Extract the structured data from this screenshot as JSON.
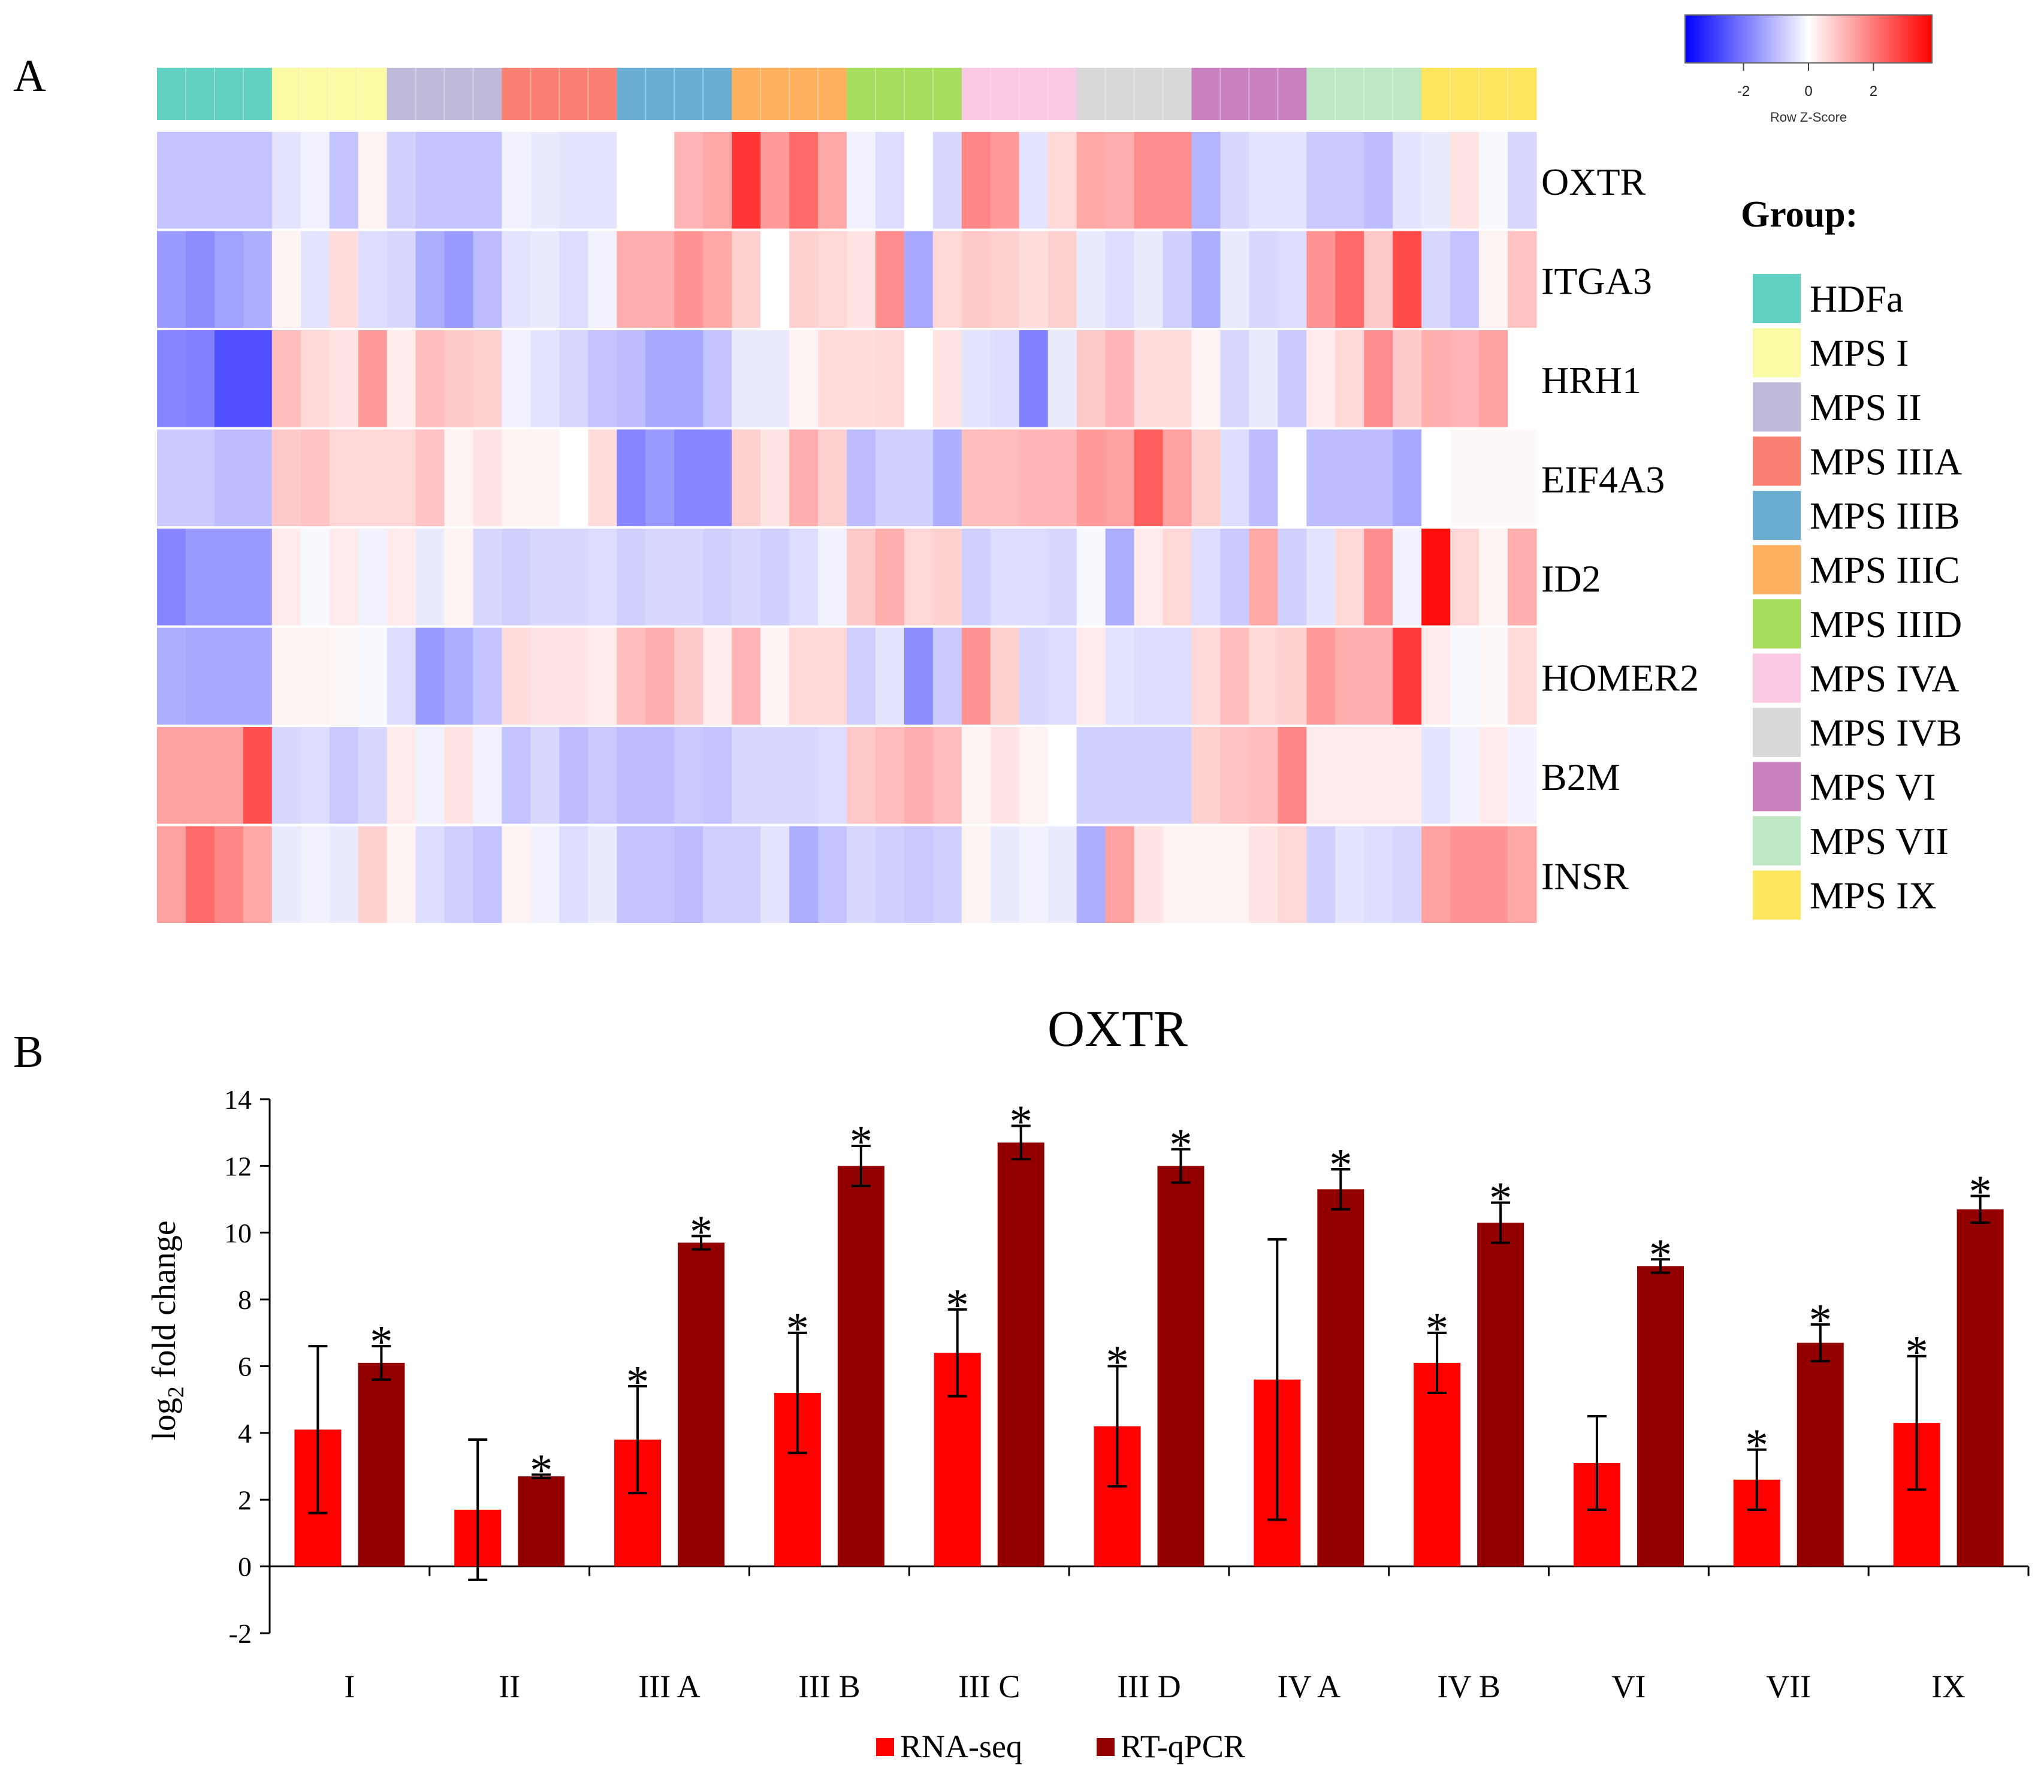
{
  "panel_labels": {
    "a": "A",
    "b": "B"
  },
  "heatmap": {
    "colorbar": {
      "label": "Row Z-Score",
      "ticks": [
        "-2",
        "0",
        "2"
      ],
      "tick_values": [
        -2,
        0,
        2
      ],
      "range": [
        -3.8,
        3.8
      ]
    },
    "legend_title": "Group:",
    "groups": [
      {
        "name": "HDFa",
        "color": "#5fd0c1"
      },
      {
        "name": "MPS I",
        "color": "#fafaa6"
      },
      {
        "name": "MPS II",
        "color": "#c0b9d9"
      },
      {
        "name": "MPS IIIA",
        "color": "#fa8071"
      },
      {
        "name": "MPS IIIB",
        "color": "#6aaed3"
      },
      {
        "name": "MPS IIIC",
        "color": "#fcb060"
      },
      {
        "name": "MPS IIID",
        "color": "#a6dc5c"
      },
      {
        "name": "MPS IVA",
        "color": "#fcc9e4"
      },
      {
        "name": "MPS IVB",
        "color": "#d8d8d8"
      },
      {
        "name": "MPS VI",
        "color": "#c880c1"
      },
      {
        "name": "MPS VII",
        "color": "#bde8c3"
      },
      {
        "name": "MPS IX",
        "color": "#fde560"
      }
    ],
    "genes": [
      "OXTR",
      "ITGA3",
      "HRH1",
      "EIF4A3",
      "ID2",
      "HOMER2",
      "B2M",
      "INSR"
    ],
    "samples_per_group": 4,
    "zscores": [
      [
        -0.9,
        -0.9,
        -0.9,
        -0.9,
        -0.4,
        -0.2,
        -0.9,
        0.2,
        -0.7,
        -0.9,
        -0.9,
        -0.9,
        -0.2,
        -0.3,
        -0.4,
        -0.4,
        0.0,
        0.0,
        1.1,
        1.3,
        3.0,
        1.5,
        2.2,
        1.3,
        -0.2,
        -0.5,
        0.0,
        -0.6,
        1.8,
        1.5,
        -0.4,
        0.6,
        1.3,
        1.2,
        1.7,
        1.7,
        -1.1,
        -0.6,
        -0.4,
        -0.4,
        -0.8,
        -0.8,
        -1.0,
        -0.4,
        -0.3,
        0.4,
        -0.1,
        -0.6
      ],
      [
        -1.5,
        -1.7,
        -1.4,
        -1.2,
        0.2,
        -0.4,
        0.5,
        -0.5,
        -0.6,
        -1.2,
        -1.5,
        -1.0,
        -0.4,
        -0.3,
        -0.5,
        -0.2,
        1.2,
        1.2,
        1.6,
        1.3,
        0.7,
        0.0,
        0.7,
        0.6,
        0.4,
        1.7,
        -1.3,
        0.6,
        0.8,
        0.7,
        0.5,
        0.7,
        -0.3,
        -0.5,
        -0.3,
        -0.7,
        -1.2,
        -0.3,
        -0.6,
        -0.5,
        1.6,
        2.2,
        0.8,
        2.7,
        -0.6,
        -0.9,
        0.2,
        0.9
      ],
      [
        -1.8,
        -1.9,
        -2.6,
        -2.6,
        1.0,
        0.6,
        0.4,
        1.5,
        0.3,
        1.0,
        0.8,
        0.7,
        -0.2,
        -0.4,
        -0.6,
        -0.9,
        -1.0,
        -1.3,
        -1.3,
        -0.9,
        -0.3,
        -0.3,
        0.2,
        0.5,
        0.5,
        0.6,
        0.0,
        0.4,
        -0.4,
        -0.5,
        -1.9,
        -0.3,
        0.8,
        1.1,
        0.5,
        0.5,
        0.2,
        -0.6,
        -0.3,
        -0.8,
        0.3,
        0.6,
        1.7,
        0.8,
        1.2,
        1.1,
        1.4,
        0.0
      ],
      [
        -0.8,
        -0.8,
        -1.0,
        -1.0,
        0.8,
        0.9,
        0.6,
        0.6,
        0.6,
        0.9,
        0.2,
        0.4,
        0.2,
        0.2,
        0.0,
        0.5,
        -1.8,
        -1.5,
        -1.8,
        -1.8,
        0.7,
        0.4,
        1.2,
        0.7,
        -1.0,
        -0.7,
        -0.7,
        -1.2,
        1.0,
        1.0,
        1.1,
        1.1,
        1.5,
        1.4,
        2.4,
        1.4,
        0.7,
        -0.5,
        -1.0,
        0.0,
        -1.0,
        -1.0,
        -1.0,
        -1.3,
        0.0,
        0.1,
        0.1,
        0.1
      ],
      [
        -1.8,
        -1.5,
        -1.5,
        -1.5,
        0.3,
        -0.1,
        0.3,
        -0.2,
        0.3,
        -0.3,
        0.2,
        -0.6,
        -0.7,
        -0.6,
        -0.6,
        -0.5,
        -0.7,
        -0.6,
        -0.6,
        -0.7,
        -0.6,
        -0.7,
        -0.5,
        -0.2,
        0.8,
        1.2,
        0.6,
        0.7,
        -0.7,
        -0.5,
        -0.5,
        -0.6,
        -0.1,
        -1.2,
        0.3,
        0.6,
        -0.5,
        -0.8,
        1.3,
        -0.7,
        -0.4,
        0.6,
        1.7,
        -0.2,
        3.6,
        0.6,
        0.2,
        1.2
      ],
      [
        -1.2,
        -1.3,
        -1.3,
        -1.3,
        0.2,
        0.2,
        0.1,
        -0.1,
        -0.5,
        -1.5,
        -1.2,
        -0.9,
        0.5,
        0.4,
        0.4,
        0.3,
        1.0,
        1.2,
        0.8,
        0.3,
        1.1,
        0.2,
        0.6,
        0.6,
        -0.7,
        -0.4,
        -1.7,
        -0.8,
        1.6,
        0.7,
        -0.6,
        -0.5,
        0.3,
        -0.4,
        -0.5,
        -0.5,
        0.6,
        1.0,
        0.6,
        0.7,
        1.5,
        1.2,
        1.2,
        2.9,
        0.3,
        -0.1,
        0.1,
        0.5
      ],
      [
        1.4,
        1.4,
        1.4,
        2.6,
        -0.6,
        -0.5,
        -0.8,
        -0.6,
        0.3,
        -0.2,
        0.4,
        -0.2,
        -0.9,
        -0.6,
        -1.0,
        -0.8,
        -1.0,
        -1.0,
        -0.8,
        -0.9,
        -0.6,
        -0.6,
        -0.6,
        -0.5,
        0.8,
        1.0,
        1.2,
        1.0,
        0.2,
        0.4,
        0.2,
        0.0,
        -0.7,
        -0.7,
        -0.7,
        -0.7,
        0.7,
        0.9,
        1.0,
        1.8,
        0.3,
        0.3,
        0.3,
        0.3,
        -0.4,
        -0.2,
        0.3,
        -0.2
      ],
      [
        1.4,
        2.2,
        1.8,
        1.3,
        -0.3,
        -0.2,
        -0.3,
        0.7,
        0.2,
        -0.5,
        -0.7,
        -0.9,
        0.2,
        -0.2,
        -0.5,
        -0.3,
        -0.9,
        -0.9,
        -1.0,
        -0.7,
        -0.7,
        -0.4,
        -1.2,
        -0.9,
        -0.6,
        -0.7,
        -0.8,
        -0.7,
        0.2,
        -0.3,
        -0.2,
        -0.3,
        -1.2,
        1.4,
        0.4,
        0.2,
        0.2,
        0.2,
        0.4,
        0.6,
        -0.7,
        -0.4,
        -0.5,
        -0.6,
        1.4,
        1.6,
        1.6,
        1.3
      ]
    ]
  },
  "chart_data": {
    "type": "bar",
    "title": "OXTR",
    "ylabel": "log",
    "ylabel_sub": "2",
    "ylabel_rest": " fold change",
    "xlabel": "",
    "ylim": [
      -2,
      14
    ],
    "yticks": [
      -2,
      0,
      2,
      4,
      6,
      8,
      10,
      12,
      14
    ],
    "categories": [
      "I",
      "II",
      "III A",
      "III B",
      "III C",
      "III D",
      "IV A",
      "IV B",
      "VI",
      "VII",
      "IX"
    ],
    "series": [
      {
        "name": "RNA-seq",
        "color": "#fe0000",
        "values": [
          4.1,
          1.7,
          3.8,
          5.2,
          6.4,
          4.2,
          5.6,
          6.1,
          3.1,
          2.6,
          4.3
        ],
        "errors": [
          2.5,
          2.1,
          1.6,
          1.8,
          1.3,
          1.8,
          4.2,
          0.9,
          1.4,
          0.9,
          2.0
        ],
        "significant": [
          false,
          false,
          true,
          true,
          true,
          true,
          false,
          true,
          false,
          true,
          true
        ]
      },
      {
        "name": "RT-qPCR",
        "color": "#930000",
        "values": [
          6.1,
          2.7,
          9.7,
          12.0,
          12.7,
          12.0,
          11.3,
          10.3,
          9.0,
          6.7,
          10.7
        ],
        "errors": [
          0.5,
          0.05,
          0.2,
          0.6,
          0.5,
          0.5,
          0.6,
          0.6,
          0.2,
          0.55,
          0.4
        ],
        "significant": [
          true,
          true,
          true,
          true,
          true,
          true,
          true,
          true,
          true,
          true,
          true
        ]
      }
    ],
    "significance_marker": "*",
    "legend_position": "bottom-center"
  }
}
